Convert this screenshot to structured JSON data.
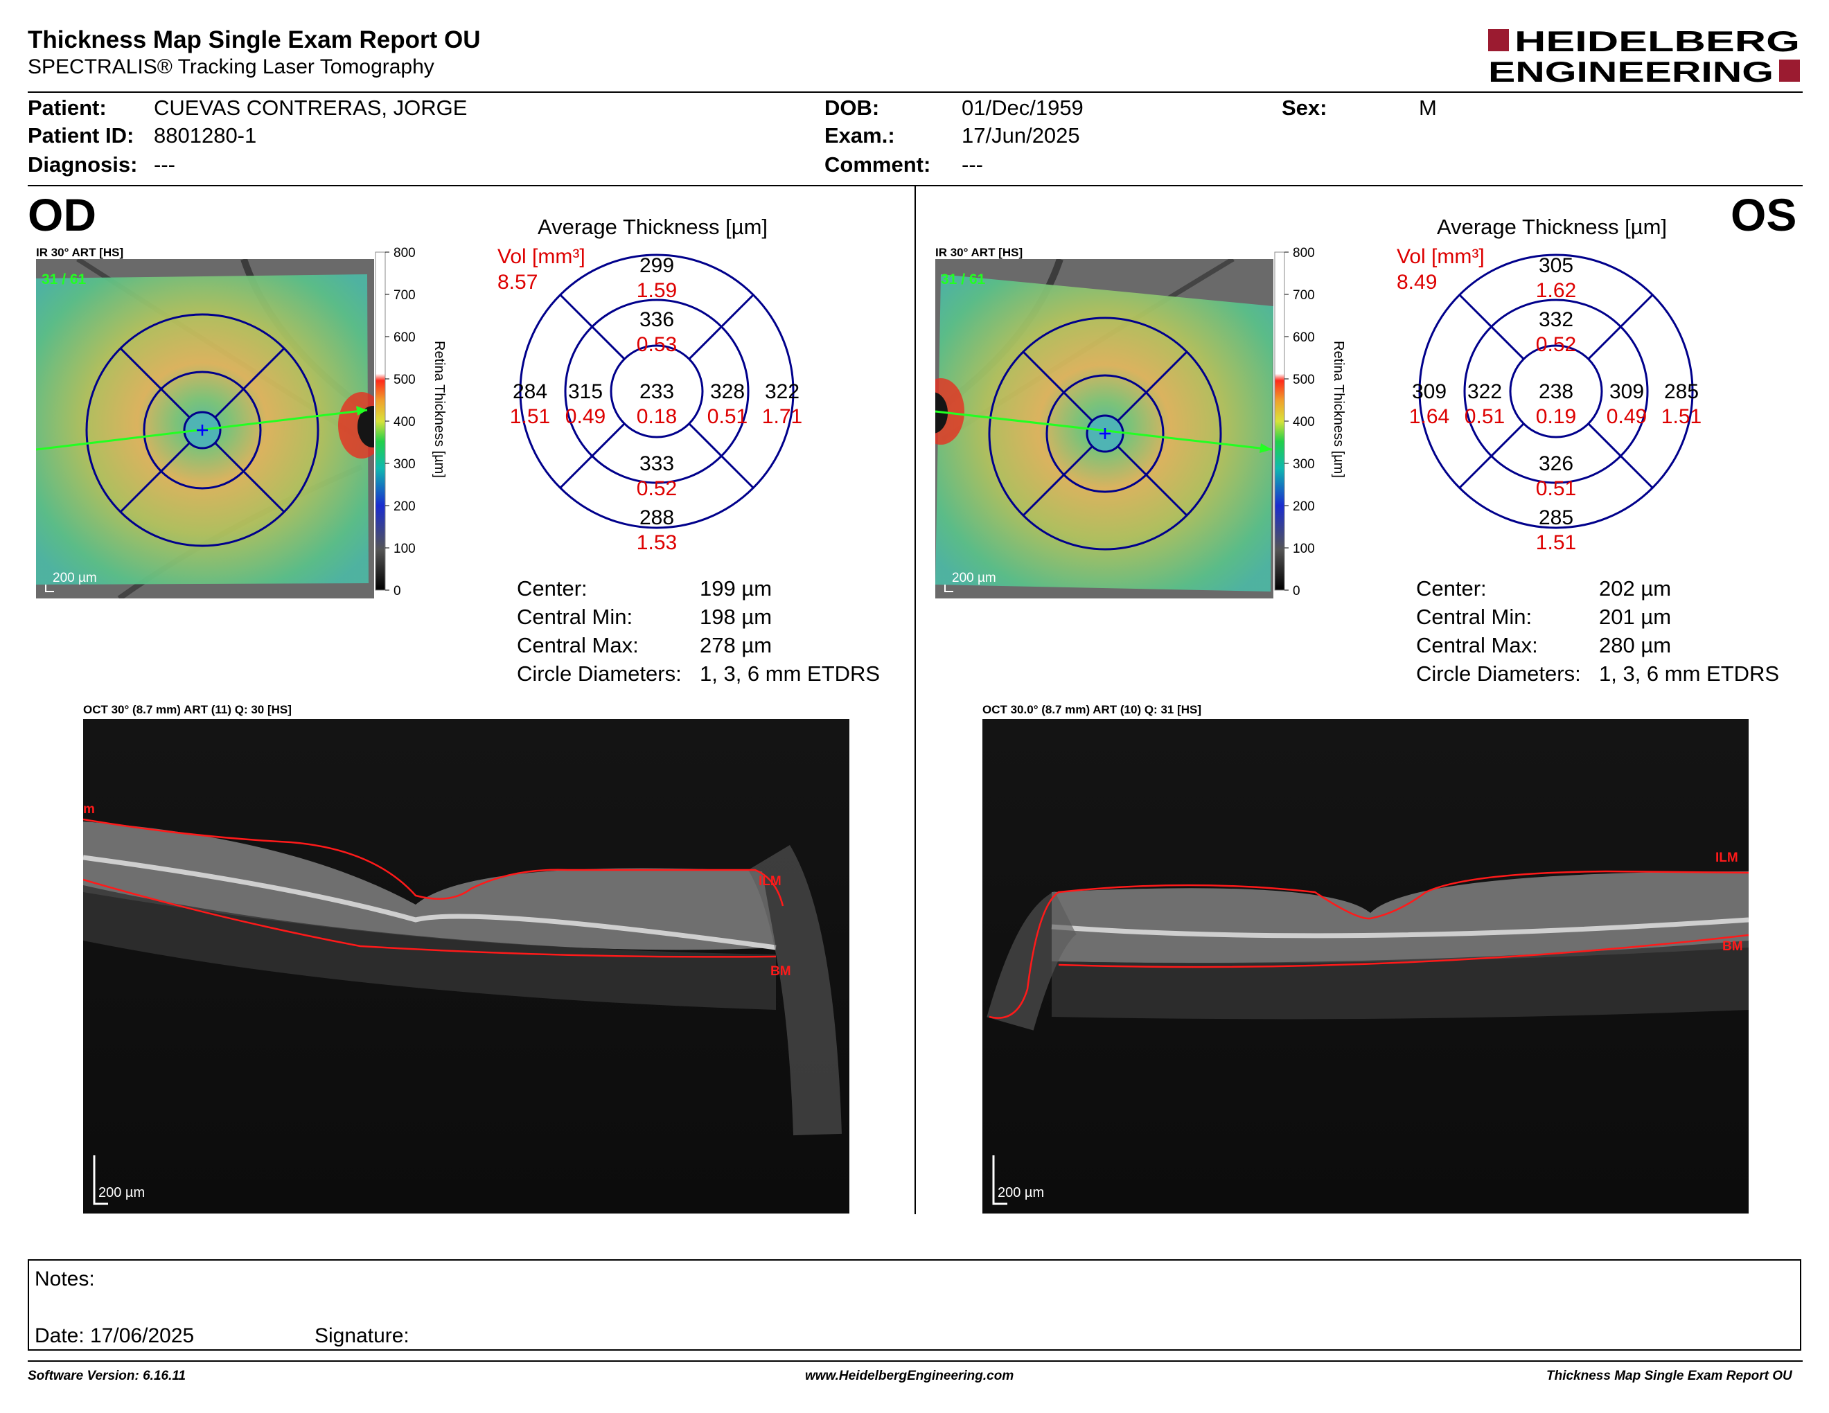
{
  "header": {
    "title": "Thickness Map Single Exam Report OU",
    "subtitle": "SPECTRALIS® Tracking Laser Tomography",
    "logo_line1": "HEIDELBERG",
    "logo_line2": "ENGINEERING",
    "brand_color": "#9b1b30"
  },
  "patient": {
    "patient_label": "Patient:",
    "patient_value": "CUEVAS CONTRERAS, JORGE",
    "id_label": "Patient ID:",
    "id_value": "8801280-1",
    "diagnosis_label": "Diagnosis:",
    "diagnosis_value": "---",
    "dob_label": "DOB:",
    "dob_value": "01/Dec/1959",
    "exam_label": "Exam.:",
    "exam_value": "17/Jun/2025",
    "comment_label": "Comment:",
    "comment_value": "---",
    "sex_label": "Sex:",
    "sex_value": "M"
  },
  "od": {
    "eye_label": "OD",
    "ir_label": "IR 30° ART [HS]",
    "frame_label": "31 / 61",
    "scale_label": "200 µm",
    "avg_title": "Average Thickness [µm]",
    "vol_label": "Vol [mm³]",
    "vol_value": "8.57",
    "sectors": {
      "center": {
        "t": "233",
        "v": "0.18"
      },
      "inner_sup": {
        "t": "336",
        "v": "0.53"
      },
      "inner_inf": {
        "t": "333",
        "v": "0.52"
      },
      "inner_left": {
        "t": "315",
        "v": "0.49"
      },
      "inner_right": {
        "t": "328",
        "v": "0.51"
      },
      "outer_sup": {
        "t": "299",
        "v": "1.59"
      },
      "outer_inf": {
        "t": "288",
        "v": "1.53"
      },
      "outer_left": {
        "t": "284",
        "v": "1.51"
      },
      "outer_right": {
        "t": "322",
        "v": "1.71"
      }
    },
    "stats": [
      {
        "label": "Center:",
        "value": "199 µm"
      },
      {
        "label": "Central Min:",
        "value": "198 µm"
      },
      {
        "label": "Central Max:",
        "value": "278 µm"
      },
      {
        "label": "Circle Diameters:",
        "value": "1, 3, 6 mm ETDRS"
      }
    ],
    "oct_label": "OCT 30° (8.7 mm) ART (11) Q: 30 [HS]",
    "oct_scale": "200 µm",
    "ilm": "ILM",
    "bm": "BM",
    "edge": "m"
  },
  "os": {
    "eye_label": "OS",
    "ir_label": "IR 30° ART [HS]",
    "frame_label": "31 / 61",
    "scale_label": "200 µm",
    "avg_title": "Average Thickness [µm]",
    "vol_label": "Vol [mm³]",
    "vol_value": "8.49",
    "sectors": {
      "center": {
        "t": "238",
        "v": "0.19"
      },
      "inner_sup": {
        "t": "332",
        "v": "0.52"
      },
      "inner_inf": {
        "t": "326",
        "v": "0.51"
      },
      "inner_left": {
        "t": "322",
        "v": "0.51"
      },
      "inner_right": {
        "t": "309",
        "v": "0.49"
      },
      "outer_sup": {
        "t": "305",
        "v": "1.62"
      },
      "outer_inf": {
        "t": "285",
        "v": "1.51"
      },
      "outer_left": {
        "t": "309",
        "v": "1.64"
      },
      "outer_right": {
        "t": "285",
        "v": "1.51"
      }
    },
    "stats": [
      {
        "label": "Center:",
        "value": "202 µm"
      },
      {
        "label": "Central Min:",
        "value": "201 µm"
      },
      {
        "label": "Central Max:",
        "value": "280 µm"
      },
      {
        "label": "Circle Diameters:",
        "value": "1, 3, 6 mm ETDRS"
      }
    ],
    "oct_label": "OCT 30.0° (8.7 mm) ART (10) Q: 31 [HS]",
    "oct_scale": "200 µm",
    "ilm": "ILM",
    "bm": "BM"
  },
  "colorbar": {
    "ticks": [
      "800",
      "700",
      "600",
      "500",
      "400",
      "300",
      "200",
      "100",
      "0"
    ],
    "label": "Retina Thickness [µm]"
  },
  "notes": {
    "notes_label": "Notes:",
    "date_label": "Date: 17/06/2025",
    "signature_label": "Signature:"
  },
  "footer": {
    "software": "Software Version: 6.16.11",
    "website": "www.HeidelbergEngineering.com",
    "report": "Thickness Map Single Exam Report OU"
  }
}
